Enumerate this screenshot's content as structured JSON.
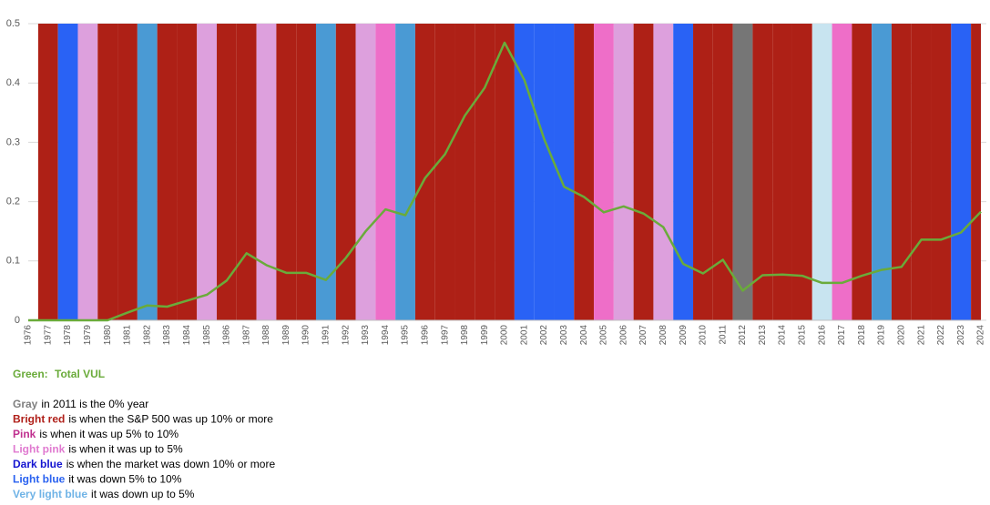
{
  "chart_data": {
    "type": "line",
    "categories": [
      "1976",
      "1977",
      "1978",
      "1979",
      "1980",
      "1981",
      "1982",
      "1983",
      "1984",
      "1985",
      "1986",
      "1987",
      "1988",
      "1989",
      "1990",
      "1991",
      "1992",
      "1993",
      "1994",
      "1995",
      "1996",
      "1997",
      "1998",
      "1999",
      "2000",
      "2001",
      "2002",
      "2003",
      "2004",
      "2005",
      "2006",
      "2007",
      "2008",
      "2009",
      "2010",
      "2011",
      "2012",
      "2013",
      "2014",
      "2015",
      "2016",
      "2017",
      "2018",
      "2019",
      "2020",
      "2021",
      "2022",
      "2023",
      "2024"
    ],
    "band_colors": [
      null,
      "#ae2016",
      "#2962f5",
      "#dda0dd",
      "#ae2016",
      "#ae2016",
      "#4a9ad4",
      "#ae2016",
      "#ae2016",
      "#dda0dd",
      "#ae2016",
      "#ae2016",
      "#dda0dd",
      "#ae2016",
      "#ae2016",
      "#4a9ad4",
      "#ae2016",
      "#dda0dd",
      "#ee6ec8",
      "#4a9ad4",
      "#ae2016",
      "#ae2016",
      "#ae2016",
      "#ae2016",
      "#ae2016",
      "#2962f5",
      "#2962f5",
      "#2962f5",
      "#ae2016",
      "#ee6ec8",
      "#dda0dd",
      "#ae2016",
      "#dda0dd",
      "#2962f5",
      "#ae2016",
      "#ae2016",
      "#767676",
      "#ae2016",
      "#ae2016",
      "#ae2016",
      "#c8e4f0",
      "#ee6ec8",
      "#ae2016",
      "#4a9ad4",
      "#ae2016",
      "#ae2016",
      "#ae2016",
      "#2962f5",
      "#ae2016"
    ],
    "series": [
      {
        "name": "Total VUL",
        "color": "#6aab3a",
        "values": [
          0,
          0,
          0,
          0,
          0,
          0.013,
          0.025,
          0.023,
          0.033,
          0.043,
          0.067,
          0.113,
          0.093,
          0.08,
          0.08,
          0.068,
          0.105,
          0.15,
          0.187,
          0.177,
          0.24,
          0.28,
          0.345,
          0.392,
          0.468,
          0.405,
          0.305,
          0.225,
          0.208,
          0.182,
          0.192,
          0.18,
          0.157,
          0.095,
          0.079,
          0.102,
          0.05,
          0.076,
          0.077,
          0.075,
          0.063,
          0.063,
          0.075,
          0.085,
          0.09,
          0.136,
          0.136,
          0.148,
          0.183
        ]
      }
    ],
    "ylim": [
      0,
      0.5
    ],
    "yticks": [
      0,
      0.1,
      0.2,
      0.3,
      0.4,
      0.5
    ],
    "grid": true,
    "series_legend_label": "Green:",
    "notes": [
      {
        "label": "Gray",
        "color": "#7f7f7f",
        "text": "in 2011 is the 0% year"
      },
      {
        "label": "Bright red",
        "color": "#b0201a",
        "text": "is when the S&P 500 was up 10% or more"
      },
      {
        "label": "Pink",
        "color": "#c0308f",
        "text": "is when it was up 5% to 10%"
      },
      {
        "label": "Light pink",
        "color": "#e07ad0",
        "text": "is when it was up to 5%"
      },
      {
        "label": "Dark blue",
        "color": "#1414d0",
        "text": "is when the market was down 10% or more"
      },
      {
        "label": "Light blue",
        "color": "#2a62f0",
        "text": "it was down 5% to 10%"
      },
      {
        "label": "Very light blue",
        "color": "#6fb3e6",
        "text": "it was down up to 5%"
      }
    ]
  }
}
